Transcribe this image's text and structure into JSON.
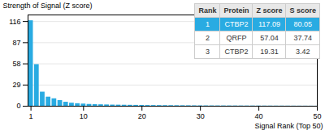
{
  "chart_data": {
    "type": "bar",
    "xlabel": "Signal Rank (Top 50)",
    "ylabel": "Strength of Signal (Z score)",
    "x": [
      1,
      2,
      3,
      4,
      5,
      6,
      7,
      8,
      9,
      10,
      11,
      12,
      13,
      14,
      15,
      16,
      17,
      18,
      19,
      20,
      21,
      22,
      23,
      24,
      25,
      26,
      27,
      28,
      29,
      30,
      31,
      32,
      33,
      34,
      35,
      36,
      37,
      38,
      39,
      40,
      41,
      42,
      43,
      44,
      45,
      46,
      47,
      48,
      49,
      50
    ],
    "values": [
      117.09,
      57.04,
      19.31,
      12.5,
      10.2,
      7.8,
      5.5,
      4.2,
      3.5,
      3.0,
      2.5,
      2.2,
      2.0,
      1.8,
      1.6,
      1.5,
      1.4,
      1.3,
      1.2,
      1.1,
      1.0,
      0.95,
      0.9,
      0.85,
      0.8,
      0.75,
      0.7,
      0.65,
      0.6,
      0.55,
      0.5,
      0.48,
      0.46,
      0.44,
      0.42,
      0.4,
      0.38,
      0.36,
      0.34,
      0.32,
      0.3,
      0.28,
      0.26,
      0.24,
      0.22,
      0.2,
      0.18,
      0.16,
      0.14,
      0.12
    ],
    "color": "#29ABE2",
    "xlim": [
      0.5,
      50
    ],
    "ylim": [
      0,
      125
    ],
    "xticks": [
      1,
      10,
      20,
      30,
      40,
      50
    ],
    "yticks": [
      0,
      29,
      58,
      87,
      116
    ],
    "grid": true,
    "table": [
      [
        "Rank",
        "Protein",
        "Z score",
        "S score"
      ],
      [
        "1",
        "CTBP2",
        "117.09",
        "80.05"
      ],
      [
        "2",
        "QRFP",
        "57.04",
        "37.74"
      ],
      [
        "3",
        "CTBP2",
        "19.31",
        "3.42"
      ]
    ]
  }
}
